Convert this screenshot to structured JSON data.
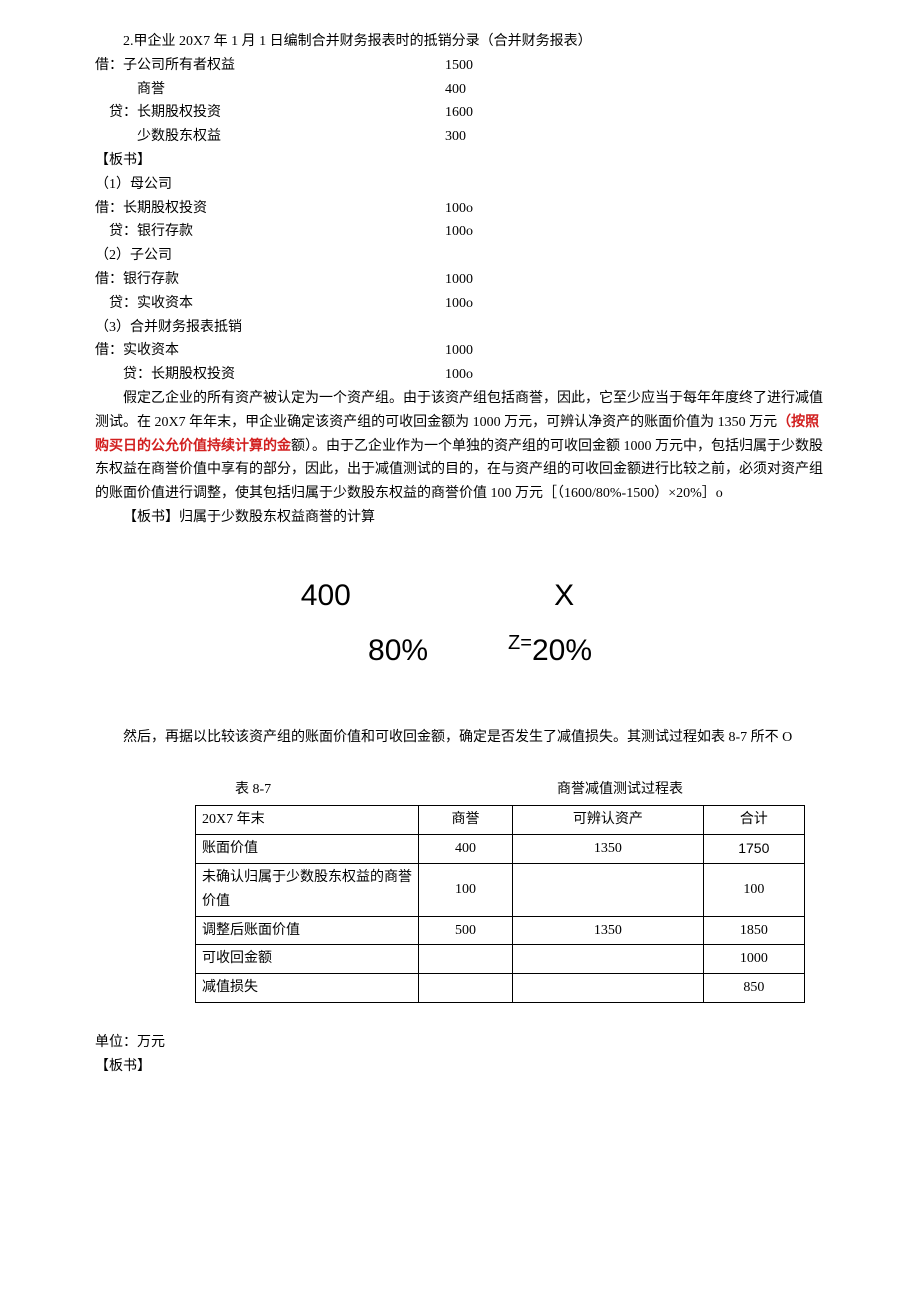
{
  "title_line": "2.甲企业 20X7 年 1 月 1 日编制合并财务报表时的抵销分录（合并财务报表）",
  "entries1": [
    {
      "label": "借：子公司所有者权益",
      "amount": "1500"
    },
    {
      "label": "　　　商誉",
      "amount": "400"
    },
    {
      "label": "　贷：长期股权投资",
      "amount": "1600"
    },
    {
      "label": "　　　少数股东权益",
      "amount": " 300"
    }
  ],
  "bs1": "【板书】",
  "s1": "（1）母公司",
  "entries2": [
    {
      "label": "借：长期股权投资",
      "amount": "100o"
    },
    {
      "label": "　贷：银行存款",
      "amount": " 100o"
    }
  ],
  "s2": "（2）子公司",
  "entries3": [
    {
      "label": "借：银行存款",
      "amount": "1000"
    },
    {
      "label": "　贷：实收资本",
      "amount": " 100o"
    }
  ],
  "s3": "（3）合并财务报表抵销",
  "entries4": [
    {
      "label": "借：实收资本",
      "amount": "1000"
    },
    {
      "label": "　　贷：长期股权投资",
      "amount": " 100o"
    }
  ],
  "para1_a": "假定乙企业的所有资产被认定为一个资产组。由于该资产组包括商誉，因此，它至少应当于每年年度终了进行减值测试。在 20X7 年年末，甲企业确定该资产组的可收回金额为 1000 万元，可辨认净资产的账面价值为 1350 万元",
  "para1_red": "（按照购买日的公允价值持续计算的金",
  "para1_b": "额）。由于乙企业作为一个单独的资产组的可收回金额 1000 万元中，包括归属于少数股东权益在商誉价值中享有的部分，因此，出于减值测试的目的，在与资产组的可收回金额进行比较之前，必须对资产组的账面价值进行调整，使其包括归属于少数股东权益的商誉价值 100 万元［（1600/80%-1500）×20%］o",
  "bs2": "【板书】归属于少数股东权益商誉的计算",
  "formula": {
    "n1": "400",
    "n2": "X",
    "p1": "80%",
    "z": "Z=",
    "p2": "20%"
  },
  "para2": "然后，再据以比较该资产组的账面价值和可收回金额，确定是否发生了减值损失。其测试过程如表 8-7 所不 O",
  "table": {
    "caption_left": "表 8-7",
    "caption_center": "商誉减值测试过程表",
    "headers": [
      "20X7 年末",
      "商誉",
      "可辨认资产",
      "合计"
    ],
    "rows": [
      {
        "c1": "账面价值",
        "c2": "400",
        "c3": "1350",
        "c4": "1750",
        "c4bold": true
      },
      {
        "c1": "未确认归属于少数股东权益的商誉价值",
        "c2": "100",
        "c3": "",
        "c4": "100"
      },
      {
        "c1": "调整后账面价值",
        "c2": "500",
        "c3": "1350",
        "c4": "1850"
      },
      {
        "c1": "可收回金额",
        "c2": "",
        "c3": "",
        "c4": "1000"
      },
      {
        "c1": "减值损失",
        "c2": "",
        "c3": "",
        "c4": "850"
      }
    ]
  },
  "unit": "单位：万元",
  "bs3": "【板书】"
}
